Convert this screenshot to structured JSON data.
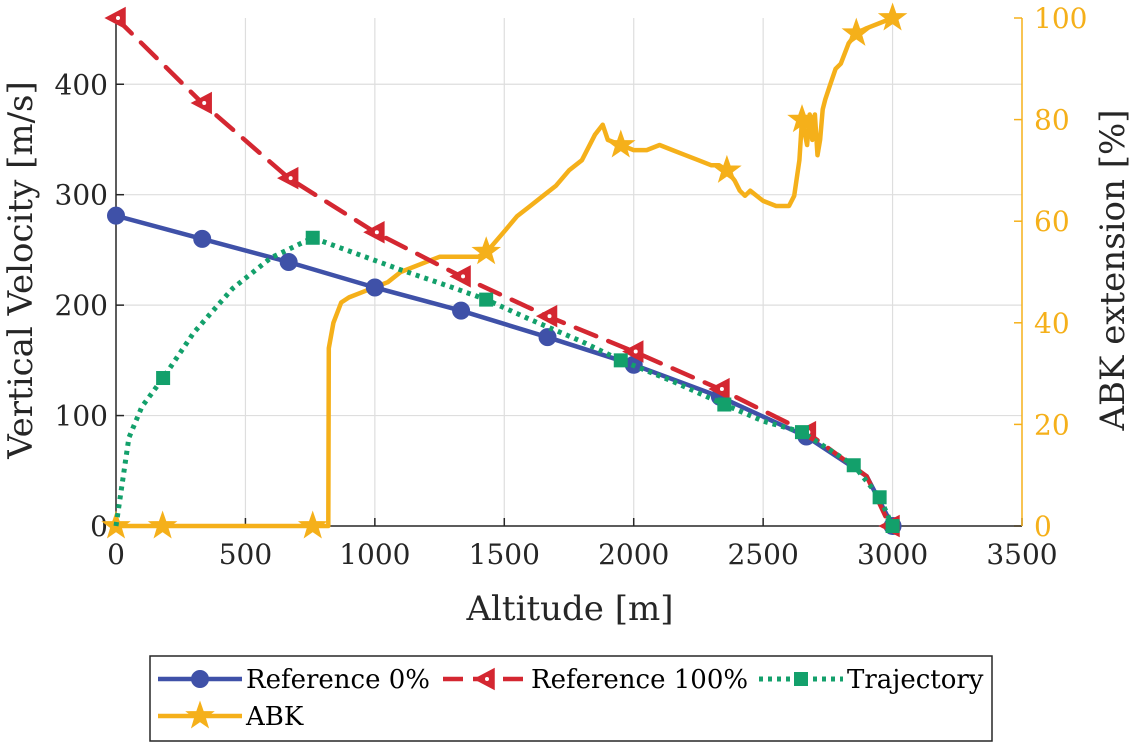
{
  "chart_data": {
    "type": "line",
    "xlabel": "Altitude [m]",
    "ylabel_left": "Vertical Velocity [m/s]",
    "ylabel_right": "ABK extension [%]",
    "xlim": [
      0,
      3500
    ],
    "ylim_left": [
      0,
      460
    ],
    "ylim_right": [
      0,
      100
    ],
    "xticks": [
      "0",
      "500",
      "1000",
      "1500",
      "2000",
      "2500",
      "3000",
      "3500"
    ],
    "yticks_left": [
      "0",
      "100",
      "200",
      "300",
      "400"
    ],
    "yticks_right": [
      "0",
      "20",
      "40",
      "60",
      "80",
      "100"
    ],
    "grid": true,
    "legend_placement": "below",
    "colors": {
      "ref0": "#3f51a8",
      "ref100": "#d42731",
      "trajectory": "#13a06b",
      "abk": "#f5b01a",
      "axis": "#262626",
      "grid": "#dedede"
    },
    "series": [
      {
        "name": "Reference 0%",
        "axis": "left",
        "marker": "circle",
        "line": "solid",
        "x": [
          0,
          333,
          667,
          1000,
          1333,
          1667,
          2000,
          2333,
          2667,
          2900,
          3000
        ],
        "y": [
          281,
          260,
          239,
          216,
          195,
          171,
          146,
          117,
          81,
          45,
          0
        ]
      },
      {
        "name": "Reference 100%",
        "axis": "left",
        "marker": "triangle-left",
        "line": "dashed",
        "x": [
          0,
          333,
          667,
          1000,
          1333,
          1667,
          2000,
          2333,
          2667,
          2900,
          2990
        ],
        "y": [
          460,
          383,
          315,
          266,
          226,
          190,
          158,
          124,
          85,
          45,
          0
        ]
      },
      {
        "name": "Trajectory",
        "axis": "left",
        "marker": "square",
        "line": "dotted",
        "x": [
          0,
          50,
          100,
          182,
          300,
          450,
          600,
          760,
          900,
          1100,
          1300,
          1430,
          1600,
          1800,
          1950,
          2150,
          2350,
          2500,
          2650,
          2850,
          2950,
          3000
        ],
        "y": [
          0,
          80,
          108,
          134,
          175,
          215,
          243,
          261,
          249,
          232,
          216,
          205,
          187,
          167,
          150,
          131,
          110,
          95,
          85,
          55,
          26,
          0
        ]
      },
      {
        "name": "ABK",
        "axis": "right",
        "marker": "star",
        "line": "solid",
        "x": [
          0,
          180,
          760,
          820,
          822,
          840,
          870,
          900,
          950,
          1000,
          1050,
          1100,
          1150,
          1200,
          1250,
          1300,
          1350,
          1400,
          1430,
          1450,
          1500,
          1550,
          1600,
          1650,
          1700,
          1750,
          1800,
          1850,
          1880,
          1900,
          1950,
          2000,
          2050,
          2100,
          2150,
          2200,
          2250,
          2300,
          2330,
          2360,
          2390,
          2410,
          2430,
          2450,
          2500,
          2550,
          2600,
          2620,
          2640,
          2650,
          2670,
          2680,
          2690,
          2700,
          2710,
          2720,
          2730,
          2740,
          2760,
          2780,
          2800,
          2830,
          2860,
          2900,
          2950,
          3000
        ],
        "y": [
          0,
          0,
          0,
          0,
          35,
          40,
          44,
          45,
          46,
          47,
          48,
          50,
          51,
          52,
          53,
          53,
          53,
          53,
          54,
          55,
          58,
          61,
          63,
          65,
          67,
          70,
          72,
          77,
          79,
          76,
          75,
          74,
          74,
          75,
          74,
          73,
          72,
          71,
          71,
          70,
          68,
          66,
          65,
          66,
          64,
          63,
          63,
          65,
          72,
          80,
          75,
          81,
          76,
          81,
          73,
          76,
          82,
          84,
          87,
          90,
          91,
          95,
          97,
          98,
          99,
          100
        ]
      }
    ]
  },
  "legend": {
    "items": [
      "Reference 0%",
      "Reference 100%",
      "Trajectory",
      "ABK"
    ]
  }
}
